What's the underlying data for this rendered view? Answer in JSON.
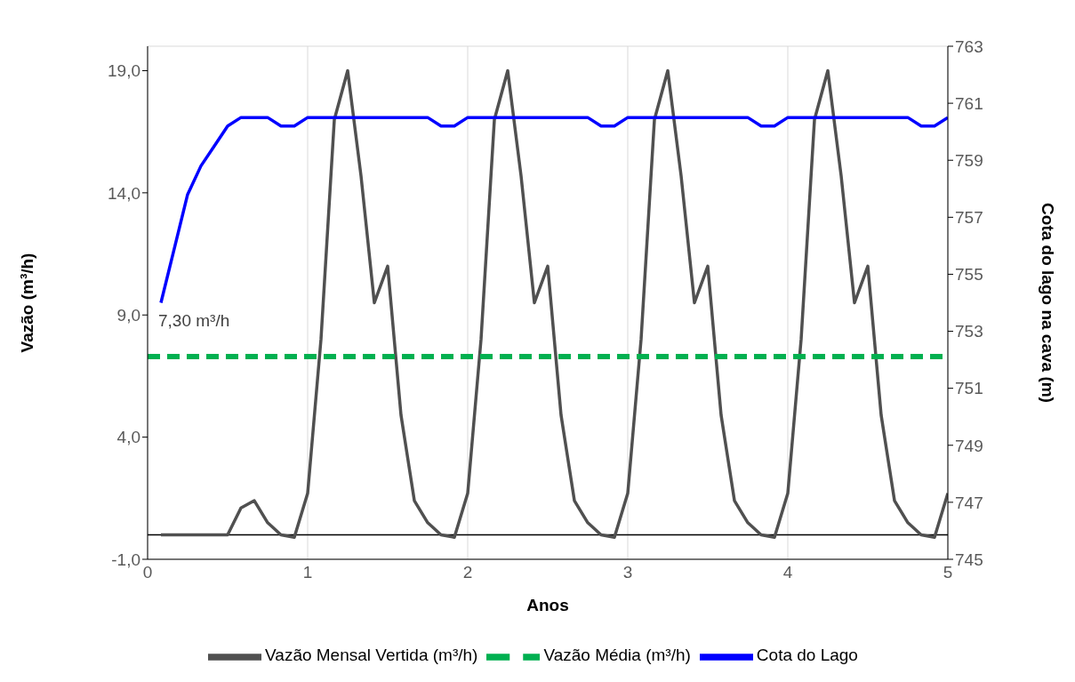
{
  "chart_data": {
    "type": "line",
    "xlabel": "Anos",
    "ylabel": "Vazão (m³/h)",
    "y2label": "Cota do lago na cava (m)",
    "annotations": [
      "7,30 m³/h"
    ],
    "xlim": [
      0,
      5
    ],
    "xticks": [
      0,
      1,
      2,
      3,
      4,
      5
    ],
    "ylim": [
      -1,
      20
    ],
    "yticks": [
      {
        "value": -1,
        "label": "-1,0"
      },
      {
        "value": 4,
        "label": "4,0"
      },
      {
        "value": 9,
        "label": "9,0"
      },
      {
        "value": 14,
        "label": "14,0"
      },
      {
        "value": 19,
        "label": "19,0"
      }
    ],
    "y2lim": [
      745,
      763
    ],
    "y2ticks": [
      745,
      747,
      749,
      751,
      753,
      755,
      757,
      759,
      761,
      763
    ],
    "grid": true,
    "legend": "bottom",
    "marker": "none",
    "ref_lines": [
      {
        "axis": "y",
        "value": 0,
        "color": "#000000"
      }
    ],
    "series": [
      {
        "name": "Vazão Mensal Vertida (m³/h)",
        "color": "#505050",
        "line_style": "solid",
        "x": [
          0.0833,
          0.1667,
          0.25,
          0.3333,
          0.4167,
          0.5,
          0.5833,
          0.6667,
          0.75,
          0.8333,
          0.9167,
          1,
          1.0833,
          1.1667,
          1.25,
          1.3333,
          1.4167,
          1.5,
          1.5833,
          1.6667,
          1.75,
          1.8333,
          1.9167,
          2,
          2.0833,
          2.1667,
          2.25,
          2.3333,
          2.4167,
          2.5,
          2.5833,
          2.6667,
          2.75,
          2.8333,
          2.9167,
          3,
          3.0833,
          3.1667,
          3.25,
          3.3333,
          3.4167,
          3.5,
          3.5833,
          3.6667,
          3.75,
          3.8333,
          3.9167,
          4,
          4.0833,
          4.1667,
          4.25,
          4.3333,
          4.4167,
          4.5,
          4.5833,
          4.6667,
          4.75,
          4.8333,
          4.9167,
          5
        ],
        "values": [
          0,
          0,
          0,
          0,
          0,
          0,
          1.1,
          1.4,
          0.5,
          0,
          -0.1,
          1.7,
          8,
          17,
          19,
          14.7,
          9.5,
          11,
          4.9,
          1.4,
          0.5,
          0,
          -0.1,
          1.7,
          8,
          17,
          19,
          14.7,
          9.5,
          11,
          4.9,
          1.4,
          0.5,
          0,
          -0.1,
          1.7,
          8,
          17,
          19,
          14.7,
          9.5,
          11,
          4.9,
          1.4,
          0.5,
          0,
          -0.1,
          1.7,
          8,
          17,
          19,
          14.7,
          9.5,
          11,
          4.9,
          1.4,
          0.5,
          0,
          -0.1,
          1.7
        ]
      },
      {
        "name": "Vazão Média (m³/h)",
        "color": "#00b050",
        "line_style": "dashed",
        "x": [
          0,
          5
        ],
        "values": [
          7.3,
          7.3
        ]
      },
      {
        "name": "Cota do Lago",
        "color": "#0000ff",
        "line_style": "solid",
        "axis": "y2",
        "x": [
          0.0833,
          0.1667,
          0.25,
          0.3333,
          0.4167,
          0.5,
          0.5833,
          0.6667,
          0.75,
          0.8333,
          0.9167,
          1,
          1.0833,
          1.1667,
          1.25,
          1.3333,
          1.4167,
          1.5,
          1.5833,
          1.6667,
          1.75,
          1.8333,
          1.9167,
          2,
          2.0833,
          2.1667,
          2.25,
          2.3333,
          2.4167,
          2.5,
          2.5833,
          2.6667,
          2.75,
          2.8333,
          2.9167,
          3,
          3.0833,
          3.1667,
          3.25,
          3.3333,
          3.4167,
          3.5,
          3.5833,
          3.6667,
          3.75,
          3.8333,
          3.9167,
          4,
          4.0833,
          4.1667,
          4.25,
          4.3333,
          4.4167,
          4.5,
          4.5833,
          4.6667,
          4.75,
          4.8333,
          4.9167,
          5
        ],
        "values": [
          754,
          755.9,
          757.8,
          758.8,
          759.5,
          760.2,
          760.5,
          760.5,
          760.5,
          760.2,
          760.2,
          760.5,
          760.5,
          760.5,
          760.5,
          760.5,
          760.5,
          760.5,
          760.5,
          760.5,
          760.5,
          760.2,
          760.2,
          760.5,
          760.5,
          760.5,
          760.5,
          760.5,
          760.5,
          760.5,
          760.5,
          760.5,
          760.5,
          760.2,
          760.2,
          760.5,
          760.5,
          760.5,
          760.5,
          760.5,
          760.5,
          760.5,
          760.5,
          760.5,
          760.5,
          760.2,
          760.2,
          760.5,
          760.5,
          760.5,
          760.5,
          760.5,
          760.5,
          760.5,
          760.5,
          760.5,
          760.5,
          760.2,
          760.2,
          760.5
        ]
      }
    ]
  }
}
